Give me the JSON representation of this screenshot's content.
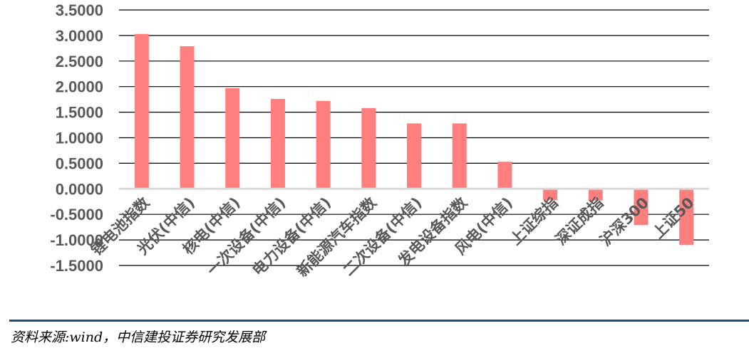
{
  "chart_data": {
    "type": "bar",
    "title": "",
    "xlabel": "",
    "ylabel": "",
    "categories": [
      "锂电池指数",
      "光伏(中信)",
      "核电(中信)",
      "一次设备(中信)",
      "电力设备(中信)",
      "新能源汽车指数",
      "二次设备(中信)",
      "发电设备指数",
      "风电(中信)",
      "上证综指",
      "深证成指",
      "沪深300",
      "上证50"
    ],
    "values": [
      3.03,
      2.79,
      1.97,
      1.76,
      1.72,
      1.58,
      1.28,
      1.28,
      0.53,
      -0.22,
      -0.23,
      -0.71,
      -1.1
    ],
    "ylim": [
      -1.5,
      3.5
    ],
    "yticks": [
      3.5,
      3.0,
      2.5,
      2.0,
      1.5,
      1.0,
      0.5,
      0.0,
      -0.5,
      -1.0,
      -1.5
    ],
    "ytick_labels": [
      "3.5000",
      "3.0000",
      "2.5000",
      "2.0000",
      "1.5000",
      "1.0000",
      "0.5000",
      "0.0000",
      "-0.5000",
      "-1.0000",
      "-1.5000"
    ],
    "grid": true,
    "legend": "none",
    "bar_color": "#ff7f7f",
    "grid_color": "#000000",
    "zero_line_color": "#d9d9d9",
    "label_color": "#595959"
  },
  "footer": {
    "source": "资料来源:wind，中信建投证券研究发展部",
    "rule_color": "#1f4e79"
  }
}
